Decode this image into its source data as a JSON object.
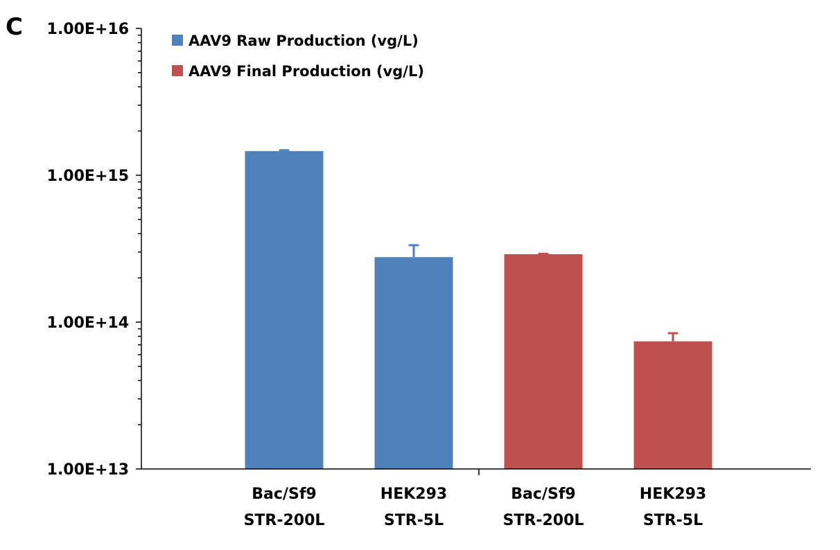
{
  "panel_label": "C",
  "chart_data": {
    "type": "bar",
    "categories": [
      [
        "Bac/Sf9",
        "STR-200L"
      ],
      [
        "HEK293",
        "STR-5L"
      ],
      [
        "Bac/Sf9",
        "STR-200L"
      ],
      [
        "HEK293",
        "STR-5L"
      ]
    ],
    "y_scale": "log",
    "ylim": [
      10000000000000.0,
      1e+16
    ],
    "y_ticks": [
      "1.00E+13",
      "1.00E+14",
      "1.00E+15",
      "1.00E+16"
    ],
    "grid": false,
    "legend_position": "top-left",
    "series": [
      {
        "name": "AAV9 Raw Production (vg/L)",
        "color": "#4F81BD",
        "values": [
          1460000000000000.0,
          277000000000000.0,
          null,
          null
        ],
        "error_upper": [
          1480000000000000.0,
          334000000000000.0,
          null,
          null
        ]
      },
      {
        "name": "AAV9 Final Production (vg/L)",
        "color": "#C0504D",
        "values": [
          null,
          null,
          290000000000000.0,
          74000000000000.0
        ],
        "error_upper": [
          null,
          null,
          292000000000000.0,
          84000000000000.0
        ]
      }
    ]
  }
}
